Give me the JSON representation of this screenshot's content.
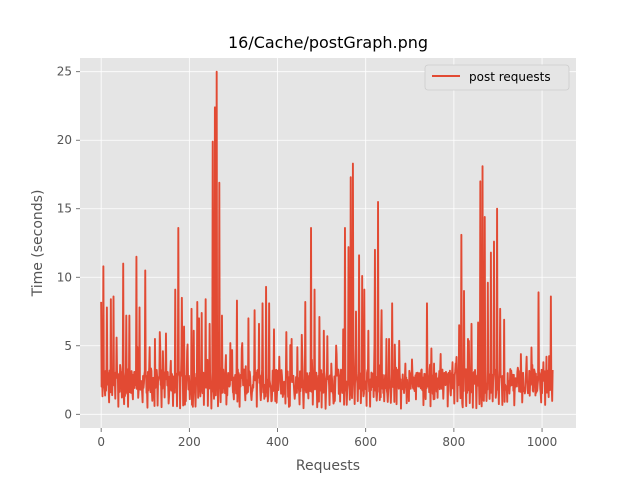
{
  "chart_data": {
    "type": "line",
    "title": "16/Cache/postGraph.png",
    "xlabel": "Requests",
    "ylabel": "Time (seconds)",
    "xlim": [
      -48,
      1077
    ],
    "ylim": [
      -1,
      26
    ],
    "xticks": [
      0,
      200,
      400,
      600,
      800,
      1000
    ],
    "yticks": [
      0,
      5,
      10,
      15,
      20,
      25
    ],
    "grid": true,
    "legend_position": "top-right",
    "colors": {
      "background": "#e5e5e5",
      "grid": "#ffffff",
      "line": "#e24a33"
    },
    "series": [
      {
        "name": "post requests",
        "n_points": 1025,
        "baseline": 2.4,
        "spikes": [
          [
            0,
            8.2
          ],
          [
            5,
            10.8
          ],
          [
            13,
            7.8
          ],
          [
            22,
            8.4
          ],
          [
            28,
            8.6
          ],
          [
            35,
            5.6
          ],
          [
            43,
            3.6
          ],
          [
            50,
            11.0
          ],
          [
            57,
            7.2
          ],
          [
            64,
            7.2
          ],
          [
            80,
            11.5
          ],
          [
            87,
            7.8
          ],
          [
            100,
            10.5
          ],
          [
            110,
            4.9
          ],
          [
            122,
            5.5
          ],
          [
            133,
            6.0
          ],
          [
            140,
            4.6
          ],
          [
            147,
            5.9
          ],
          [
            158,
            3.9
          ],
          [
            168,
            9.1
          ],
          [
            175,
            13.6
          ],
          [
            183,
            8.5
          ],
          [
            188,
            6.4
          ],
          [
            196,
            5.1
          ],
          [
            205,
            7.7
          ],
          [
            210,
            6.1
          ],
          [
            218,
            8.2
          ],
          [
            222,
            7.0
          ],
          [
            228,
            7.4
          ],
          [
            237,
            8.4
          ],
          [
            246,
            6.6
          ],
          [
            253,
            19.9
          ],
          [
            258,
            22.4
          ],
          [
            262,
            25.0
          ],
          [
            268,
            16.9
          ],
          [
            274,
            7.2
          ],
          [
            293,
            5.2
          ],
          [
            308,
            8.3
          ],
          [
            320,
            5.2
          ],
          [
            334,
            7.0
          ],
          [
            348,
            7.6
          ],
          [
            358,
            6.6
          ],
          [
            366,
            8.1
          ],
          [
            374,
            9.3
          ],
          [
            381,
            8.1
          ],
          [
            392,
            6.2
          ],
          [
            404,
            4.2
          ],
          [
            420,
            6.0
          ],
          [
            432,
            5.5
          ],
          [
            445,
            4.9
          ],
          [
            455,
            5.8
          ],
          [
            463,
            8.2
          ],
          [
            476,
            13.6
          ],
          [
            484,
            9.1
          ],
          [
            495,
            7.1
          ],
          [
            505,
            6.1
          ],
          [
            513,
            5.7
          ],
          [
            522,
            3.7
          ],
          [
            534,
            4.4
          ],
          [
            549,
            6.2
          ],
          [
            553,
            13.6
          ],
          [
            561,
            12.2
          ],
          [
            566,
            17.3
          ],
          [
            571,
            18.3
          ],
          [
            578,
            7.5
          ],
          [
            585,
            11.6
          ],
          [
            592,
            10.1
          ],
          [
            597,
            9.1
          ],
          [
            606,
            6.1
          ],
          [
            614,
            3.0
          ],
          [
            621,
            12.0
          ],
          [
            628,
            15.5
          ],
          [
            636,
            7.6
          ],
          [
            647,
            5.5
          ],
          [
            653,
            5.5
          ],
          [
            660,
            8.1
          ],
          [
            669,
            3.4
          ],
          [
            690,
            3.7
          ],
          [
            705,
            4.0
          ],
          [
            722,
            3.0
          ],
          [
            739,
            8.1
          ],
          [
            755,
            3.7
          ],
          [
            770,
            4.4
          ],
          [
            782,
            3.1
          ],
          [
            789,
            2.7
          ],
          [
            797,
            3.8
          ],
          [
            804,
            3.7
          ],
          [
            812,
            6.5
          ],
          [
            817,
            13.1
          ],
          [
            823,
            9.0
          ],
          [
            832,
            5.5
          ],
          [
            840,
            6.6
          ],
          [
            846,
            3.1
          ],
          [
            855,
            6.7
          ],
          [
            860,
            17.0
          ],
          [
            865,
            18.1
          ],
          [
            870,
            14.4
          ],
          [
            877,
            9.6
          ],
          [
            884,
            11.8
          ],
          [
            891,
            12.6
          ],
          [
            898,
            15.0
          ],
          [
            905,
            7.7
          ],
          [
            914,
            6.9
          ],
          [
            928,
            3.3
          ],
          [
            945,
            3.4
          ],
          [
            965,
            4.2
          ],
          [
            978,
            3.6
          ],
          [
            992,
            8.9
          ],
          [
            1003,
            3.8
          ],
          [
            1010,
            4.2
          ],
          [
            1020,
            8.6
          ],
          [
            1025,
            4.1
          ]
        ]
      }
    ]
  }
}
